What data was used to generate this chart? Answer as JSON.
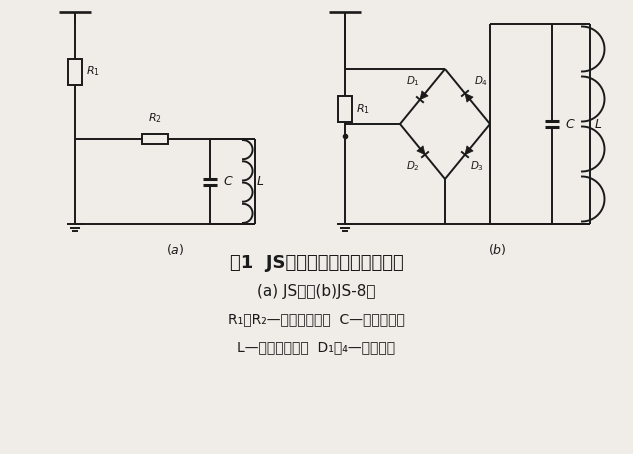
{
  "bg_color": "#f0ede8",
  "line_color": "#1a1a1a",
  "fig_width": 6.33,
  "fig_height": 4.54,
  "dpi": 100,
  "title1": "图1  JS型动作记数器的原理接线",
  "title2": "(a) JS型；(b)JS-8型",
  "title3": "R₁、R₂—非线性电阻；  C—贮能电容器",
  "title4": "L—记数器线圈；  D₁～₄—硅二极管"
}
